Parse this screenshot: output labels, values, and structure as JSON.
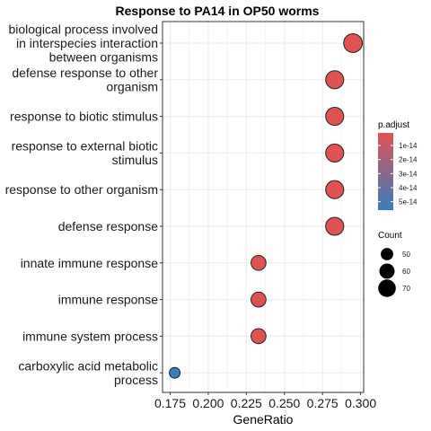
{
  "chart_data": {
    "type": "scatter",
    "title": "Response to PA14 in OP50 worms",
    "xlabel": "GeneRatio",
    "ylabel": "",
    "xlim": [
      0.17,
      0.302
    ],
    "xticks": [
      "0.175",
      "0.200",
      "0.225",
      "0.250",
      "0.275",
      "0.300"
    ],
    "grid": true,
    "categories": [
      [
        "biological process involved",
        "in interspecies interaction",
        "between organisms"
      ],
      [
        "defense response to other",
        "organism"
      ],
      [
        "response to biotic stimulus"
      ],
      [
        "response to external biotic",
        "stimulus"
      ],
      [
        "response to other organism"
      ],
      [
        "defense response"
      ],
      [
        "innate immune response"
      ],
      [
        "immune response"
      ],
      [
        "immune system process"
      ],
      [
        "carboxylic acid metabolic",
        "process"
      ]
    ],
    "points": [
      {
        "gene_ratio": 0.295,
        "count": 75,
        "p_adjust": 1e-15
      },
      {
        "gene_ratio": 0.283,
        "count": 72,
        "p_adjust": 1e-15
      },
      {
        "gene_ratio": 0.283,
        "count": 72,
        "p_adjust": 1e-15
      },
      {
        "gene_ratio": 0.283,
        "count": 72,
        "p_adjust": 1e-15
      },
      {
        "gene_ratio": 0.283,
        "count": 72,
        "p_adjust": 1e-15
      },
      {
        "gene_ratio": 0.283,
        "count": 72,
        "p_adjust": 1e-15
      },
      {
        "gene_ratio": 0.233,
        "count": 59,
        "p_adjust": 1e-15
      },
      {
        "gene_ratio": 0.233,
        "count": 59,
        "p_adjust": 1e-15
      },
      {
        "gene_ratio": 0.233,
        "count": 59,
        "p_adjust": 1e-15
      },
      {
        "gene_ratio": 0.178,
        "count": 45,
        "p_adjust": 5.6e-14
      }
    ],
    "color_legend": {
      "title": "p.adjust",
      "labels": [
        "1e-14",
        "2e-14",
        "3e-14",
        "4e-14",
        "5e-14"
      ],
      "values": [
        1e-14,
        2e-14,
        3e-14,
        4e-14,
        5e-14
      ],
      "range": [
        1e-15,
        5.6e-14
      ],
      "low_color": "#e05252",
      "high_color": "#3a7dc1"
    },
    "size_legend": {
      "title": "Count",
      "labels": [
        "50",
        "60",
        "70"
      ],
      "values": [
        50,
        60,
        70
      ]
    },
    "colors": {
      "point_outline": "#222222",
      "panel_border": "#333333",
      "grid": "#ebebeb"
    }
  }
}
